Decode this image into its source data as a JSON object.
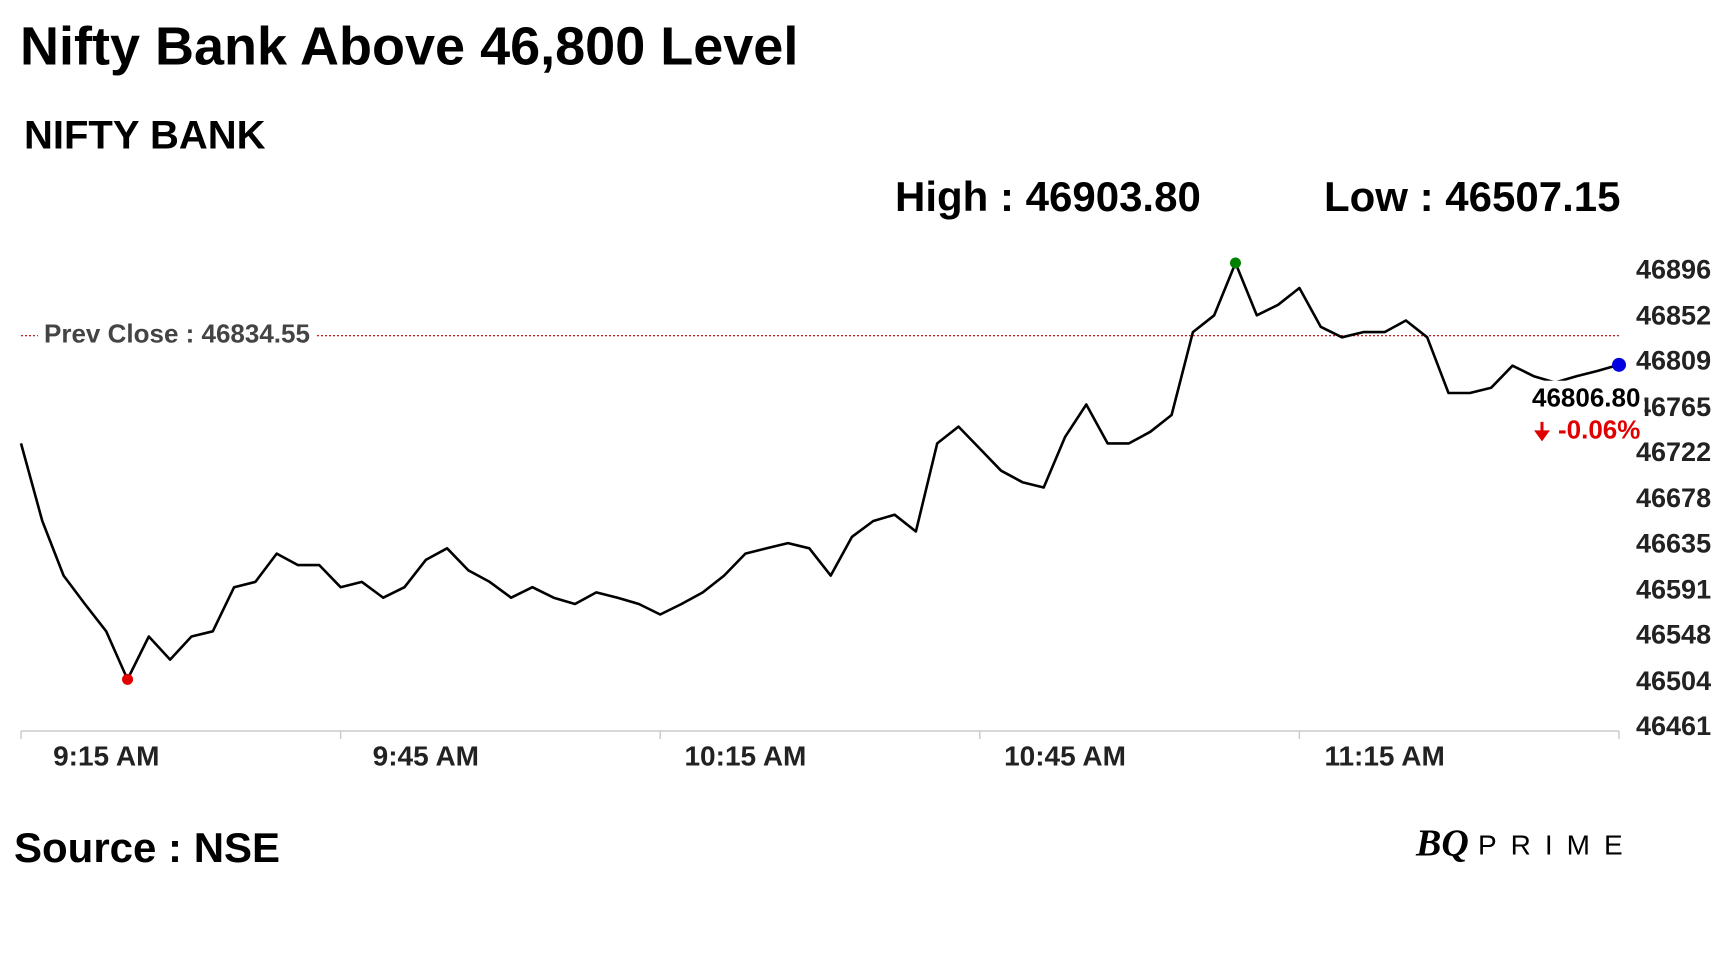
{
  "chart_data": {
    "type": "line",
    "title": "Nifty Bank Above 46,800 Level",
    "subtitle": "NIFTY BANK",
    "high_text": "High : 46903.80",
    "low_text": "Low : 46507.15",
    "prev_close": 46834.55,
    "prev_close_text": "Prev Close : 46834.55",
    "prev_close_color": "#c00000",
    "last_text": "46806.80",
    "change_text": "-0.06%",
    "change_color": "#e00000",
    "source": "Source : NSE",
    "brand": "BQ",
    "brand_suffix": "PRIME",
    "categories": [
      null,
      null,
      null,
      null,
      "9:15 AM",
      null,
      null,
      null,
      null,
      null,
      null,
      null,
      null,
      null,
      null,
      null,
      null,
      null,
      null,
      "9:45 AM",
      null,
      null,
      null,
      null,
      null,
      null,
      null,
      null,
      null,
      null,
      null,
      null,
      null,
      null,
      "10:15 AM",
      null,
      null,
      null,
      null,
      null,
      null,
      null,
      null,
      null,
      null,
      null,
      null,
      null,
      null,
      "10:45 AM",
      null,
      null,
      null,
      null,
      null,
      null,
      null,
      null,
      null,
      null,
      null,
      null,
      null,
      null,
      "11:15 AM",
      null,
      null,
      null,
      null,
      null,
      null,
      null,
      null,
      null,
      null,
      null
    ],
    "series": [
      {
        "name": "NIFTY BANK",
        "color": "#000000",
        "values": [
          46732,
          46658,
          46606,
          46579,
          46553,
          46507.15,
          46548,
          46526,
          46548,
          46553,
          46595,
          46600,
          46627,
          46616,
          46616,
          46595,
          46600,
          46585,
          46595,
          46621,
          46632,
          46611,
          46600,
          46585,
          46595,
          46585,
          46579,
          46590,
          46585,
          46579,
          46569,
          46579,
          46590,
          46606,
          46627,
          46632,
          46637,
          46632,
          46606,
          46643,
          46658,
          46664,
          46648,
          46732,
          46748,
          46727,
          46706,
          46695,
          46690,
          46738,
          46769,
          46732,
          46732,
          46743,
          46759,
          46838,
          46854,
          46903.8,
          46854,
          46864,
          46880,
          46843,
          46833,
          46838,
          46838,
          46849,
          46833,
          46780,
          46780,
          46785,
          46806,
          46796,
          46790,
          46796,
          46801,
          46806.8
        ]
      }
    ],
    "low_color": "#e00000",
    "high_color": "#008000",
    "last_color": "#0000e0",
    "ylim": [
      46458,
      46920
    ],
    "yticks": [
      46461,
      46504,
      46548,
      46591,
      46635,
      46678,
      46722,
      46765,
      46809,
      46852,
      46896
    ]
  }
}
